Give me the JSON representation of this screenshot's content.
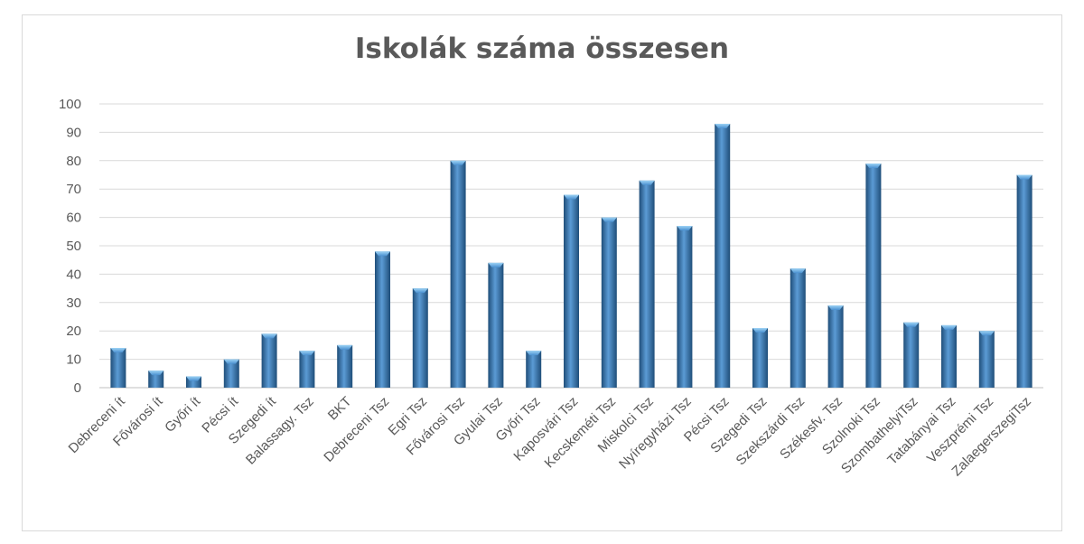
{
  "chart_data": {
    "type": "bar",
    "title": "Iskolák száma összesen",
    "xlabel": "",
    "ylabel": "",
    "ylim": [
      0,
      100
    ],
    "yticks": [
      0,
      10,
      20,
      30,
      40,
      50,
      60,
      70,
      80,
      90,
      100
    ],
    "grid": true,
    "legend": "none",
    "bar_color": "#2e75b6",
    "categories": [
      "Debreceni ít",
      "Fővárosi ít",
      "Győri ít",
      "Pécsi ít",
      "Szegedi ít",
      "Balassagy. Tsz",
      "BKT",
      "Debreceni Tsz",
      "Egri Tsz",
      "Fővárosi Tsz",
      "Gyulai Tsz",
      "Győri Tsz",
      "Kaposvári Tsz",
      "Kecskeméti Tsz",
      "Miskolci Tsz",
      "Nyíregyházi Tsz",
      "Pécsi Tsz",
      "Szegedi Tsz",
      "Szekszárdi Tsz",
      "Székesfv. Tsz",
      "Szolnoki Tsz",
      "SzombathelyiTsz",
      "Tatabányai Tsz",
      "Veszprémi Tsz",
      "ZalaegerszegiTsz"
    ],
    "values": [
      14,
      6,
      4,
      10,
      19,
      13,
      15,
      48,
      35,
      80,
      44,
      13,
      68,
      60,
      73,
      57,
      93,
      21,
      42,
      29,
      79,
      23,
      22,
      20,
      75
    ]
  }
}
